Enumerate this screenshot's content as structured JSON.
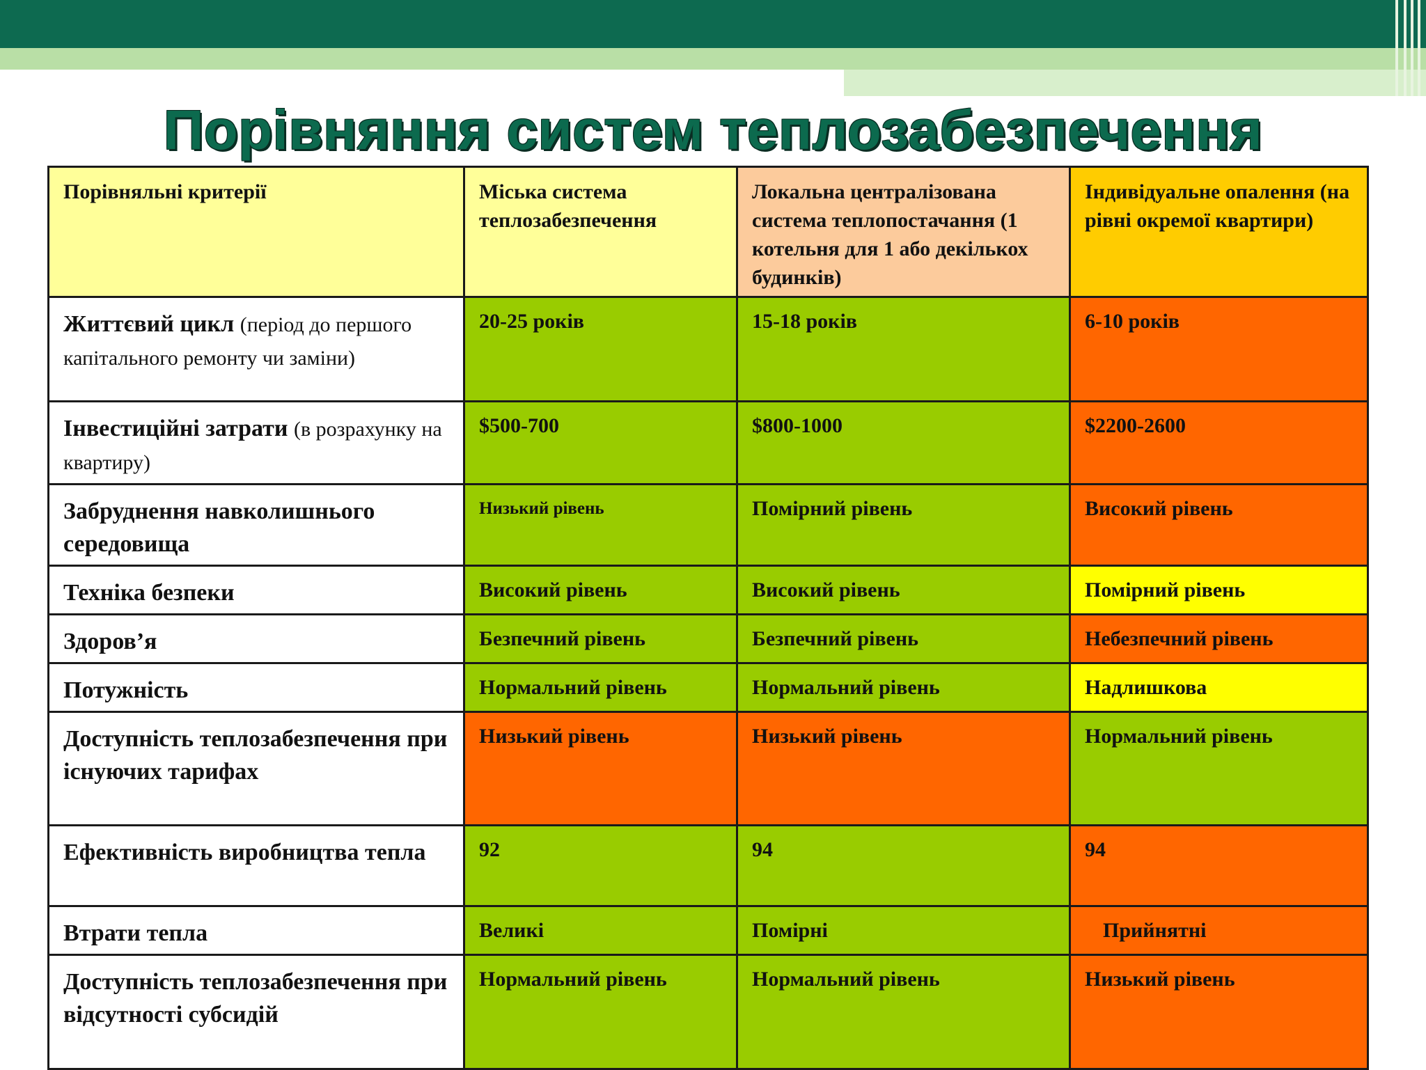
{
  "slide": {
    "title": "Порівняння систем теплозабезпечення"
  },
  "colors": {
    "header_band": "#0d6a50",
    "title_text": "#0c6a4e",
    "green_cell": "#99cc00",
    "orange_cell": "#ff6600",
    "yellow_cell": "#ffff00",
    "header_col1": "#ffff99",
    "header_col2": "#ffff99",
    "header_col3": "#fccb9c",
    "header_col4": "#ffcc00"
  },
  "table": {
    "headers": [
      "Порівняльні критерії",
      "Міська система теплозабезпечення",
      "Локальна централізована система теплопостачання (1 котельня для 1 або декількох будинків)",
      "Індивідуальне опалення (на рівні окремої квартири)"
    ],
    "rows": [
      {
        "criterion": "Життєвий цикл",
        "note": "(період до першого капітального ремонту чи заміни)",
        "cells": [
          {
            "text": "20-25 років",
            "color": "#99cc00"
          },
          {
            "text": "15-18 років",
            "color": "#99cc00"
          },
          {
            "text": "6-10 років",
            "color": "#ff6600"
          }
        ]
      },
      {
        "criterion": "Інвестиційні затрати",
        "note": "(в розрахунку на квартиру)",
        "cells": [
          {
            "text": "$500-700",
            "color": "#99cc00"
          },
          {
            "text": "$800-1000",
            "color": "#99cc00"
          },
          {
            "text": "$2200-2600",
            "color": "#ff6600"
          }
        ]
      },
      {
        "criterion": "Забруднення навколишнього середовища",
        "note": "",
        "cells": [
          {
            "text": "Низький рівень",
            "color": "#99cc00"
          },
          {
            "text": "Помірний рівень",
            "color": "#99cc00"
          },
          {
            "text": "Високий рівень",
            "color": "#ff6600"
          }
        ]
      },
      {
        "criterion": "Техніка безпеки",
        "note": "",
        "cells": [
          {
            "text": "Високий рівень",
            "color": "#99cc00"
          },
          {
            "text": "Високий рівень",
            "color": "#99cc00"
          },
          {
            "text": "Помірний рівень",
            "color": "#ffff00"
          }
        ]
      },
      {
        "criterion": "Здоров’я",
        "note": "",
        "cells": [
          {
            "text": "Безпечний рівень",
            "color": "#99cc00"
          },
          {
            "text": "Безпечний рівень",
            "color": "#99cc00"
          },
          {
            "text": "Небезпечний рівень",
            "color": "#ff6600"
          }
        ]
      },
      {
        "criterion": "Потужність",
        "note": "",
        "cells": [
          {
            "text": "Нормальний рівень",
            "color": "#99cc00"
          },
          {
            "text": "Нормальний рівень",
            "color": "#99cc00"
          },
          {
            "text": "Надлишкова",
            "color": "#ffff00"
          }
        ]
      },
      {
        "criterion": "Доступність теплозабезпечення при існуючих тарифах",
        "note": "",
        "cells": [
          {
            "text": "Низький рівень",
            "color": "#ff6600"
          },
          {
            "text": "Низький рівень",
            "color": "#ff6600"
          },
          {
            "text": "Нормальний рівень",
            "color": "#99cc00"
          }
        ]
      },
      {
        "criterion": "Ефективність виробництва тепла",
        "note": "",
        "cells": [
          {
            "text": "92",
            "color": "#99cc00"
          },
          {
            "text": "94",
            "color": "#99cc00"
          },
          {
            "text": "94",
            "color": "#ff6600"
          }
        ]
      },
      {
        "criterion": "Втрати тепла",
        "note": "",
        "cells": [
          {
            "text": "Великі",
            "color": "#99cc00"
          },
          {
            "text": "Помірні",
            "color": "#99cc00"
          },
          {
            "text": "Прийнятні",
            "color": "#ff6600"
          }
        ]
      },
      {
        "criterion": "Доступність теплозабезпечення при відсутності субсидій",
        "note": "",
        "cells": [
          {
            "text": "Нормальний рівень",
            "color": "#99cc00"
          },
          {
            "text": "Нормальний рівень",
            "color": "#99cc00"
          },
          {
            "text": "Низький рівень",
            "color": "#ff6600"
          }
        ]
      }
    ]
  }
}
